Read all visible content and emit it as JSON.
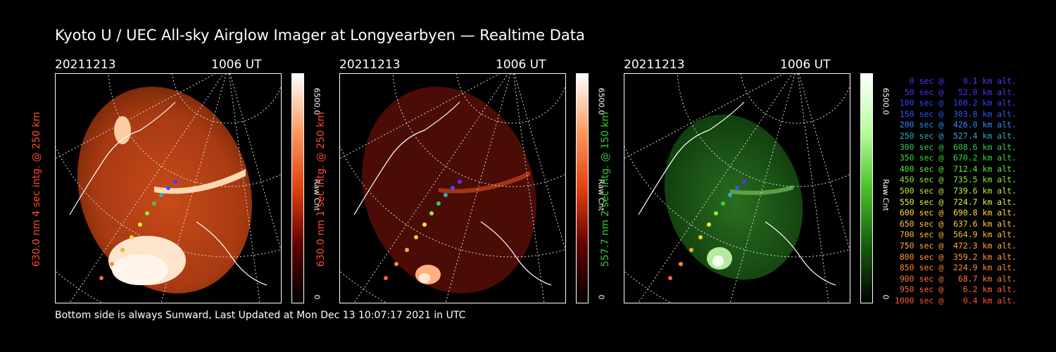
{
  "title": "Kyoto U / UEC All-sky Airglow Imager at Longyearbyen — Realtime Data",
  "footer": "Bottom side is always Sunward, Last Updated at Mon Dec 13 10:07:17 2021 in UTC",
  "panels": [
    {
      "date": "20211213",
      "time": "1006 UT",
      "ylabel": "630.0 nm 4 sec intg. @ 250 km",
      "ylabel_color": "#ff4a2a",
      "cbar_max": "6500.0",
      "cbar_min": "0",
      "cbar_title": "Raw Cnt",
      "colormap": "red",
      "brightness": "high"
    },
    {
      "date": "20211213",
      "time": "1006 UT",
      "ylabel": "630.0 nm 1 sec intg. @ 250 km",
      "ylabel_color": "#ff4a2a",
      "cbar_max": "6500.0",
      "cbar_min": "0",
      "cbar_title": "Raw Cnt",
      "colormap": "red",
      "brightness": "low"
    },
    {
      "date": "20211213",
      "time": "1006 UT",
      "ylabel": "557.7 nm 2 sec intg. @ 150 km",
      "ylabel_color": "#33cc33",
      "cbar_max": "6500.0",
      "cbar_min": "0",
      "cbar_title": "Raw Cnt",
      "colormap": "green",
      "brightness": "medium"
    }
  ],
  "legend": [
    {
      "text": "0 sec @    0.1 km alt.",
      "color": "#5533ff"
    },
    {
      "text": "50 sec @   52.0 km alt.",
      "color": "#4433ff"
    },
    {
      "text": "100 sec @  160.2 km alt.",
      "color": "#3344ff"
    },
    {
      "text": "150 sec @  303.8 km alt.",
      "color": "#3355ff"
    },
    {
      "text": "200 sec @  426.0 km alt.",
      "color": "#3388ff"
    },
    {
      "text": "250 sec @  527.4 km alt.",
      "color": "#33aacc"
    },
    {
      "text": "300 sec @  608.6 km alt.",
      "color": "#33cc55"
    },
    {
      "text": "350 sec @  670.2 km alt.",
      "color": "#33dd33"
    },
    {
      "text": "400 sec @  712.4 km alt.",
      "color": "#55ee33"
    },
    {
      "text": "450 sec @  735.5 km alt.",
      "color": "#88ee33"
    },
    {
      "text": "500 sec @  739.6 km alt.",
      "color": "#bbee33"
    },
    {
      "text": "550 sec @  724.7 km alt.",
      "color": "#eeee33"
    },
    {
      "text": "600 sec @  690.8 km alt.",
      "color": "#ffdd33"
    },
    {
      "text": "650 sec @  637.6 km alt.",
      "color": "#ffcc33"
    },
    {
      "text": "700 sec @  564.9 km alt.",
      "color": "#ffbb33"
    },
    {
      "text": "750 sec @  472.3 km alt.",
      "color": "#ffaa33"
    },
    {
      "text": "800 sec @  359.2 km alt.",
      "color": "#ff9933"
    },
    {
      "text": "850 sec @  224.9 km alt.",
      "color": "#ff8833"
    },
    {
      "text": "900 sec @   68.7 km alt.",
      "color": "#ff7733"
    },
    {
      "text": "950 sec @    6.2 km alt.",
      "color": "#ff6633"
    },
    {
      "text": "1000 sec @    0.4 km alt.",
      "color": "#ff5533"
    }
  ]
}
